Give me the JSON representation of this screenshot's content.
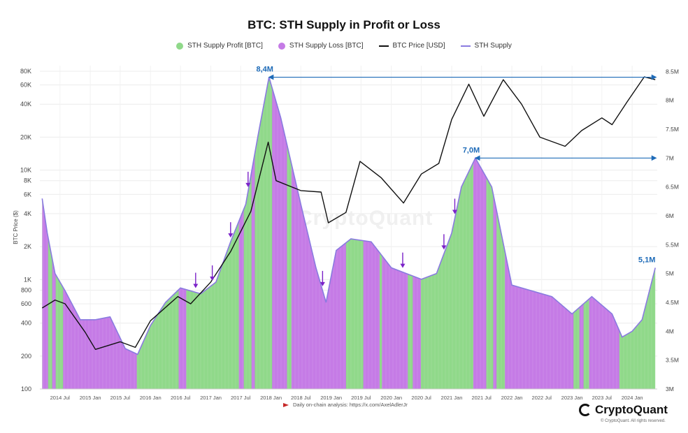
{
  "chart_data": {
    "type": "area",
    "title": "BTC: STH Supply in Profit or Loss",
    "ylabel_left": "BTC Price ($)",
    "ylabel_right": "",
    "y_left_scale": "log",
    "y_left_range": [
      100,
      90000
    ],
    "y_right_range": [
      3000000,
      8600000
    ],
    "x_range": [
      "2014-03-01",
      "2024-06-01"
    ],
    "grid": true,
    "legend_position": "top-center",
    "colors": {
      "profit": "#90d98a",
      "loss": "#c57be6",
      "price": "#111111",
      "supply": "#8a7be0",
      "annotation": "#1e6bb8",
      "arrow": "#7b22c8"
    },
    "legend": [
      {
        "label": "STH Supply Profit [BTC]",
        "kind": "dot",
        "color": "#90d98a"
      },
      {
        "label": "STH Supply Loss [BTC]",
        "kind": "dot",
        "color": "#c57be6"
      },
      {
        "label": "BTC Price [USD]",
        "kind": "line",
        "color": "#111111"
      },
      {
        "label": "STH Supply",
        "kind": "line",
        "color": "#8a7be0"
      }
    ],
    "y_left_ticks": [
      {
        "v": 80000,
        "label": "80K"
      },
      {
        "v": 60000,
        "label": "60K"
      },
      {
        "v": 40000,
        "label": "40K"
      },
      {
        "v": 20000,
        "label": "20K"
      },
      {
        "v": 10000,
        "label": "10K"
      },
      {
        "v": 8000,
        "label": "8K"
      },
      {
        "v": 6000,
        "label": "6K"
      },
      {
        "v": 4000,
        "label": "4K"
      },
      {
        "v": 2000,
        "label": "2K"
      },
      {
        "v": 1000,
        "label": "1K"
      },
      {
        "v": 800,
        "label": "800"
      },
      {
        "v": 600,
        "label": "600"
      },
      {
        "v": 400,
        "label": "400"
      },
      {
        "v": 200,
        "label": "200"
      },
      {
        "v": 100,
        "label": "100"
      }
    ],
    "y_right_ticks": [
      {
        "v": 8500000,
        "label": "8.5M"
      },
      {
        "v": 8000000,
        "label": "8M"
      },
      {
        "v": 7500000,
        "label": "7.5M"
      },
      {
        "v": 7000000,
        "label": "7M"
      },
      {
        "v": 6500000,
        "label": "6.5M"
      },
      {
        "v": 6000000,
        "label": "6M"
      },
      {
        "v": 5500000,
        "label": "5.5M"
      },
      {
        "v": 5000000,
        "label": "5M"
      },
      {
        "v": 4500000,
        "label": "4.5M"
      },
      {
        "v": 4000000,
        "label": "4M"
      },
      {
        "v": 3500000,
        "label": "3.5M"
      },
      {
        "v": 3000000,
        "label": "3M"
      }
    ],
    "x_ticks": [
      {
        "date": "2014-07-01",
        "label": "2014 Jul"
      },
      {
        "date": "2015-01-01",
        "label": "2015 Jan"
      },
      {
        "date": "2015-07-01",
        "label": "2015 Jul"
      },
      {
        "date": "2016-01-01",
        "label": "2016 Jan"
      },
      {
        "date": "2016-07-01",
        "label": "2016 Jul"
      },
      {
        "date": "2017-01-01",
        "label": "2017 Jan"
      },
      {
        "date": "2017-07-01",
        "label": "2017 Jul"
      },
      {
        "date": "2018-01-01",
        "label": "2018 Jan"
      },
      {
        "date": "2018-07-01",
        "label": "2018 Jul"
      },
      {
        "date": "2019-01-01",
        "label": "2019 Jan"
      },
      {
        "date": "2019-07-01",
        "label": "2019 Jul"
      },
      {
        "date": "2020-01-01",
        "label": "2020 Jan"
      },
      {
        "date": "2020-07-01",
        "label": "2020 Jul"
      },
      {
        "date": "2021-01-01",
        "label": "2021 Jan"
      },
      {
        "date": "2021-07-01",
        "label": "2021 Jul"
      },
      {
        "date": "2022-01-01",
        "label": "2022 Jan"
      },
      {
        "date": "2022-07-01",
        "label": "2022 Jul"
      },
      {
        "date": "2023-01-01",
        "label": "2023 Jan"
      },
      {
        "date": "2023-07-01",
        "label": "2023 Jul"
      },
      {
        "date": "2024-01-01",
        "label": "2024 Jan"
      }
    ],
    "series": [
      {
        "name": "STH Supply",
        "axis": "right",
        "points": [
          [
            "2014-03-15",
            6300000
          ],
          [
            "2014-04-15",
            5700000
          ],
          [
            "2014-06-01",
            5000000
          ],
          [
            "2014-08-01",
            4700000
          ],
          [
            "2014-11-01",
            4200000
          ],
          [
            "2015-02-01",
            4200000
          ],
          [
            "2015-05-01",
            4250000
          ],
          [
            "2015-08-01",
            3700000
          ],
          [
            "2015-10-15",
            3600000
          ],
          [
            "2016-01-01",
            4100000
          ],
          [
            "2016-04-01",
            4500000
          ],
          [
            "2016-07-01",
            4750000
          ],
          [
            "2016-11-01",
            4650000
          ],
          [
            "2017-02-01",
            4850000
          ],
          [
            "2017-05-01",
            5550000
          ],
          [
            "2017-08-01",
            6200000
          ],
          [
            "2017-10-15",
            7400000
          ],
          [
            "2017-12-20",
            8400000
          ],
          [
            "2018-03-01",
            7700000
          ],
          [
            "2018-07-01",
            6200000
          ],
          [
            "2018-10-01",
            5100000
          ],
          [
            "2018-12-01",
            4500000
          ],
          [
            "2019-02-01",
            5400000
          ],
          [
            "2019-05-01",
            5600000
          ],
          [
            "2019-09-01",
            5550000
          ],
          [
            "2020-01-01",
            5100000
          ],
          [
            "2020-04-01",
            5000000
          ],
          [
            "2020-07-01",
            4900000
          ],
          [
            "2020-10-01",
            5000000
          ],
          [
            "2021-01-01",
            5700000
          ],
          [
            "2021-03-01",
            6500000
          ],
          [
            "2021-05-25",
            7000000
          ],
          [
            "2021-09-01",
            6500000
          ],
          [
            "2022-01-01",
            4800000
          ],
          [
            "2022-05-01",
            4700000
          ],
          [
            "2022-09-01",
            4600000
          ],
          [
            "2023-01-01",
            4300000
          ],
          [
            "2023-05-01",
            4600000
          ],
          [
            "2023-09-01",
            4300000
          ],
          [
            "2023-11-01",
            3900000
          ],
          [
            "2024-01-01",
            4000000
          ],
          [
            "2024-03-01",
            4200000
          ],
          [
            "2024-05-20",
            5100000
          ]
        ]
      },
      {
        "name": "BTC Price [USD]",
        "axis": "left",
        "points": [
          [
            "2014-03-15",
            550
          ],
          [
            "2014-06-01",
            650
          ],
          [
            "2014-08-01",
            600
          ],
          [
            "2014-12-01",
            330
          ],
          [
            "2015-02-01",
            230
          ],
          [
            "2015-07-01",
            270
          ],
          [
            "2015-10-01",
            240
          ],
          [
            "2016-01-01",
            420
          ],
          [
            "2016-06-15",
            700
          ],
          [
            "2016-09-01",
            600
          ],
          [
            "2017-01-01",
            950
          ],
          [
            "2017-05-01",
            1800
          ],
          [
            "2017-09-01",
            4200
          ],
          [
            "2017-12-15",
            18000
          ],
          [
            "2018-02-01",
            8000
          ],
          [
            "2018-07-01",
            6500
          ],
          [
            "2018-11-01",
            6300
          ],
          [
            "2018-12-15",
            3300
          ],
          [
            "2019-04-01",
            4100
          ],
          [
            "2019-06-25",
            12000
          ],
          [
            "2019-11-01",
            8500
          ],
          [
            "2020-03-15",
            5000
          ],
          [
            "2020-07-01",
            9200
          ],
          [
            "2020-10-15",
            11500
          ],
          [
            "2021-01-01",
            29000
          ],
          [
            "2021-04-15",
            61000
          ],
          [
            "2021-07-15",
            31000
          ],
          [
            "2021-11-10",
            67000
          ],
          [
            "2022-03-01",
            40000
          ],
          [
            "2022-06-20",
            20000
          ],
          [
            "2022-11-20",
            16500
          ],
          [
            "2023-03-01",
            23000
          ],
          [
            "2023-07-01",
            30000
          ],
          [
            "2023-09-01",
            26000
          ],
          [
            "2023-12-01",
            42000
          ],
          [
            "2024-03-14",
            71000
          ],
          [
            "2024-05-20",
            67000
          ]
        ]
      }
    ],
    "loss_periods": [
      [
        "2014-03-15",
        "2014-04-20"
      ],
      [
        "2014-05-15",
        "2014-06-05"
      ],
      [
        "2014-07-20",
        "2015-10-10"
      ],
      [
        "2016-06-20",
        "2016-08-05"
      ],
      [
        "2017-06-20",
        "2017-07-20"
      ],
      [
        "2017-09-05",
        "2017-09-25"
      ],
      [
        "2018-01-08",
        "2018-04-08"
      ],
      [
        "2018-05-05",
        "2019-04-01"
      ],
      [
        "2019-07-15",
        "2019-10-22"
      ],
      [
        "2019-11-05",
        "2020-04-10"
      ],
      [
        "2020-05-10",
        "2020-06-28"
      ],
      [
        "2021-05-12",
        "2021-07-30"
      ],
      [
        "2021-09-10",
        "2021-09-30"
      ],
      [
        "2021-11-20",
        "2023-01-10"
      ],
      [
        "2023-02-15",
        "2023-03-12"
      ],
      [
        "2023-04-15",
        "2023-10-15"
      ]
    ],
    "arrows": [
      "2016-10-01",
      "2017-01-10",
      "2017-05-01",
      "2017-08-15",
      "2018-11-10",
      "2020-03-10",
      "2020-11-15",
      "2021-01-20"
    ],
    "annotations": [
      {
        "label": "8,4M",
        "date": "2017-12-20",
        "value": 8400000,
        "arrow_to": "2024-05-25"
      },
      {
        "label": "7,0M",
        "date": "2021-05-25",
        "value": 7000000,
        "arrow_to": "2024-05-25"
      },
      {
        "label": "5,1M",
        "date": "2024-05-20",
        "value": 5100000
      }
    ]
  },
  "footnote": "Daily on-chain analysis: https://x.com/AxelAdlerJr",
  "brand": "CryptoQuant",
  "copyright": "© CryptoQuant. All rights reserved.",
  "watermark": "CryptoQuant"
}
